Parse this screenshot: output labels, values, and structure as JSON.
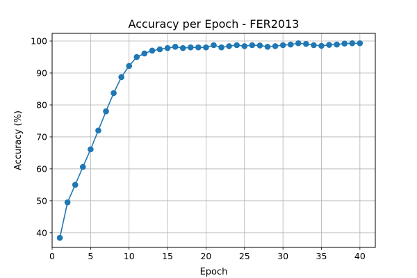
{
  "chart_data": {
    "type": "line",
    "title": "Accuracy per Epoch - FER2013",
    "xlabel": "Epoch",
    "ylabel": "Accuracy (%)",
    "xlim": [
      0,
      42
    ],
    "ylim": [
      35.4,
      102.4
    ],
    "xticks": [
      0,
      5,
      10,
      15,
      20,
      25,
      30,
      35,
      40
    ],
    "yticks": [
      40,
      50,
      60,
      70,
      80,
      90,
      100
    ],
    "grid": true,
    "legend": "none",
    "series": [
      {
        "color": "#1f77b4",
        "marker": "circle",
        "x": [
          1,
          2,
          3,
          4,
          5,
          6,
          7,
          8,
          9,
          10,
          11,
          12,
          13,
          14,
          15,
          16,
          17,
          18,
          19,
          20,
          21,
          22,
          23,
          24,
          25,
          26,
          27,
          28,
          29,
          30,
          31,
          32,
          33,
          34,
          35,
          36,
          37,
          38,
          39,
          40
        ],
        "y": [
          38.4,
          49.5,
          55.0,
          60.6,
          66.1,
          72.0,
          78.0,
          83.7,
          88.7,
          92.2,
          95.0,
          96.1,
          97.0,
          97.4,
          97.8,
          98.2,
          97.8,
          98.0,
          98.0,
          98.0,
          98.7,
          98.0,
          98.4,
          98.7,
          98.4,
          98.7,
          98.6,
          98.2,
          98.4,
          98.7,
          98.9,
          99.3,
          99.1,
          98.7,
          98.5,
          98.8,
          98.9,
          99.2,
          99.3,
          99.3
        ]
      }
    ]
  }
}
